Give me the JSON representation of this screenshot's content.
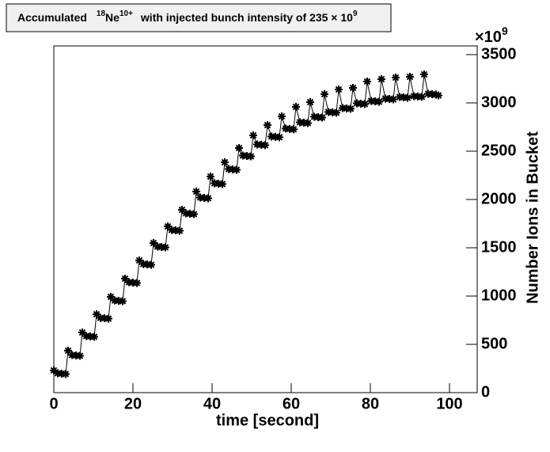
{
  "chart_data": {
    "type": "line",
    "title": [
      "Accumulated",
      "18",
      "Ne",
      "10+",
      "with injected bunch intensity of 235 × 10",
      "9"
    ],
    "x_label": "time [second]",
    "y_label": "Number Ions in Bucket",
    "y_multiplier": [
      "×10",
      "9"
    ],
    "xlim": [
      0,
      107
    ],
    "xticks": [
      0,
      20,
      40,
      60,
      80,
      100
    ],
    "ylim": [
      0,
      3590
    ],
    "yticks": [
      0,
      500,
      1000,
      1500,
      2000,
      2500,
      3000,
      3500
    ],
    "series": [
      {
        "color": "#000000",
        "x": [
          0,
          1,
          2,
          3,
          3.6,
          4.6,
          5.6,
          6.6,
          7.2,
          8.2,
          9.2,
          10.2,
          10.8,
          11.8,
          12.8,
          13.8,
          14.4,
          15.4,
          16.4,
          17.4,
          18,
          19,
          20,
          21,
          21.6,
          22.6,
          23.6,
          24.6,
          25.2,
          26.2,
          27.2,
          28.2,
          28.8,
          29.8,
          30.8,
          31.8,
          32.4,
          33.4,
          34.4,
          35.4,
          36,
          37,
          38,
          39,
          39.6,
          40.6,
          41.6,
          42.6,
          43.2,
          44.2,
          45.2,
          46.2,
          46.8,
          47.8,
          48.8,
          49.8,
          50.4,
          51.4,
          52.4,
          53.4,
          54,
          55,
          56,
          57,
          57.6,
          58.6,
          59.6,
          60.6,
          61.2,
          62.2,
          63.2,
          64.2,
          64.8,
          65.8,
          66.8,
          67.8,
          68.4,
          69.4,
          70.4,
          71.4,
          72,
          73,
          74,
          75,
          75.6,
          76.6,
          77.6,
          78.6,
          79.2,
          80.2,
          81.2,
          82.2,
          82.8,
          83.8,
          84.8,
          85.8,
          86.4,
          87.4,
          88.4,
          89.4,
          90,
          91,
          92,
          93,
          93.6,
          94.6,
          95.6,
          96.6,
          97.2
        ],
        "values": [
          230,
          201,
          197,
          193,
          434,
          389,
          385,
          381,
          623,
          586,
          582,
          578,
          811,
          774,
          770,
          766,
          992,
          955,
          951,
          947,
          1180,
          1143,
          1139,
          1135,
          1369,
          1332,
          1328,
          1324,
          1549,
          1512,
          1508,
          1504,
          1721,
          1684,
          1680,
          1676,
          1893,
          1856,
          1852,
          1848,
          2082,
          2020,
          2016,
          2012,
          2238,
          2168,
          2164,
          2160,
          2385,
          2315,
          2311,
          2307,
          2533,
          2455,
          2451,
          2447,
          2664,
          2570,
          2566,
          2562,
          2770,
          2652,
          2648,
          2644,
          2861,
          2734,
          2730,
          2726,
          2959,
          2799,
          2795,
          2791,
          3008,
          2856,
          2852,
          2848,
          3090,
          2906,
          2902,
          2898,
          3139,
          2947,
          2943,
          2939,
          3156,
          2996,
          2992,
          2988,
          3221,
          3020,
          3016,
          3012,
          3246,
          3045,
          3041,
          3037,
          3262,
          3061,
          3057,
          3053,
          3270,
          3070,
          3066,
          3062,
          3295,
          3094,
          3090,
          3086,
          3078
        ]
      }
    ]
  }
}
